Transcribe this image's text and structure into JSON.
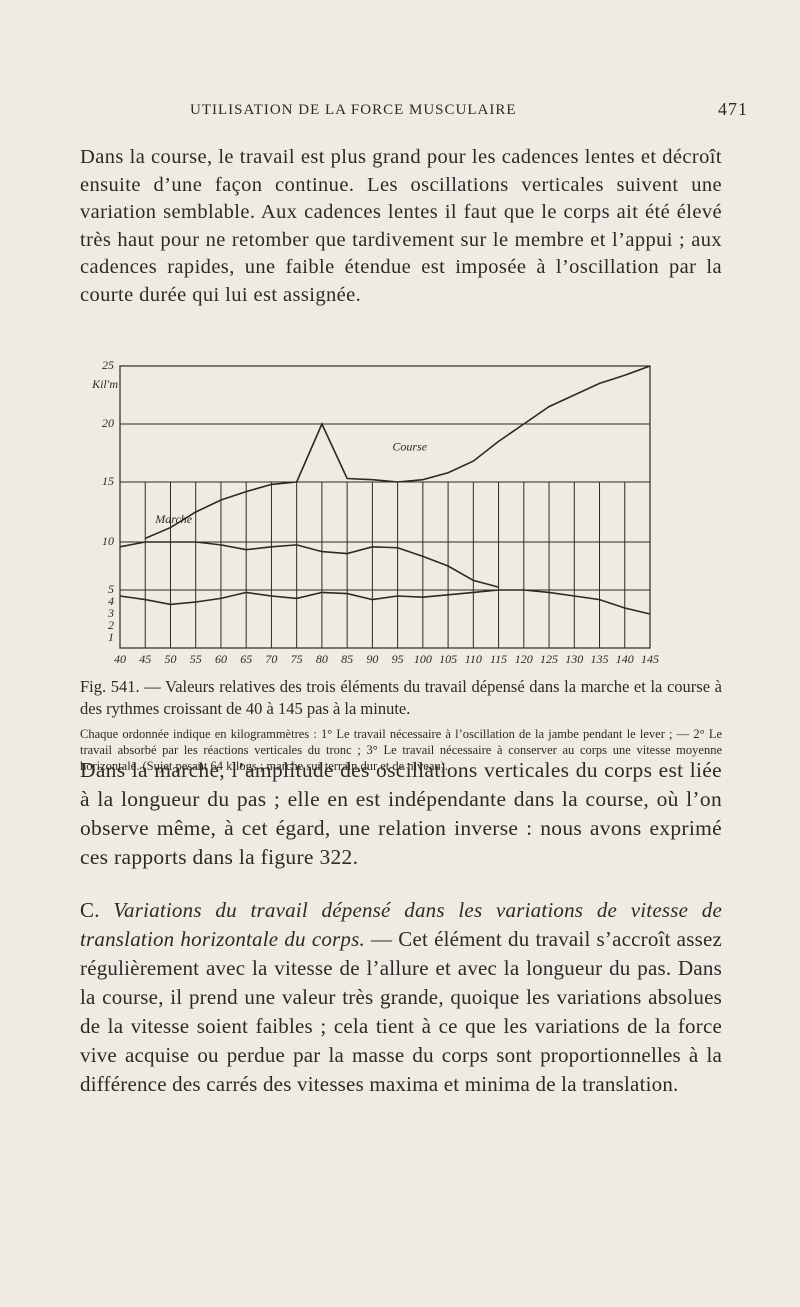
{
  "header": {
    "title": "UTILISATION DE LA FORCE MUSCULAIRE",
    "page": "471"
  },
  "paragraphs": [
    "Dans la course, le travail est plus grand pour les cadences lentes et décroît ensuite d’une façon continue. Les oscillations verticales suivent une variation semblable. Aux cadences lentes il faut que le corps ait été élevé très haut pour ne retomber que tardivement sur le membre et l’appui ; aux cadences rapides, une faible étendue est imposée à l’oscillation par la courte durée qui lui est assignée."
  ],
  "figure": {
    "chart_data": {
      "type": "line",
      "y_label": "Kil'm",
      "x": [
        40,
        45,
        50,
        55,
        60,
        65,
        70,
        75,
        80,
        85,
        90,
        95,
        100,
        105,
        110,
        115,
        120,
        125,
        130,
        135,
        140,
        145
      ],
      "xticks": [
        40,
        45,
        50,
        55,
        60,
        65,
        70,
        75,
        80,
        85,
        90,
        95,
        100,
        105,
        110,
        115,
        120,
        125,
        130,
        135,
        140,
        145
      ],
      "xlim": [
        40,
        145
      ],
      "ylim": [
        0,
        25
      ],
      "yticks": [
        1,
        2,
        3,
        4,
        5,
        10,
        15,
        20,
        25
      ],
      "color": "#2a2a2a",
      "series": [
        {
          "name": "Marche",
          "values": [
            null,
            10.3,
            11.2,
            12.5,
            13.5,
            14.2,
            14.8,
            15,
            null,
            null,
            null,
            null,
            null,
            null,
            null,
            null,
            null,
            null,
            null,
            null,
            null,
            null
          ]
        },
        {
          "name": "Course",
          "values": [
            null,
            null,
            null,
            null,
            null,
            null,
            null,
            15,
            20,
            15.3,
            15.2,
            15,
            15.2,
            15.8,
            16.8,
            18.5,
            20,
            21.5,
            22.5,
            23.5,
            24.2,
            25
          ]
        },
        {
          "values": [
            9.5,
            10,
            10,
            10,
            9.7,
            9.2,
            9.5,
            9.7,
            9,
            8.8,
            9.5,
            9.4,
            8.5,
            7.5,
            6,
            5.3,
            null,
            null,
            null,
            null,
            null,
            null
          ]
        },
        {
          "values": [
            4.5,
            4.2,
            3.8,
            4,
            4.3,
            4.8,
            4.5,
            4.3,
            4.8,
            4.7,
            4.2,
            4.5,
            4.4,
            4.6,
            4.8,
            5,
            5,
            4.8,
            4.5,
            4.2,
            3.5,
            3
          ]
        }
      ]
    },
    "caption": "Fig. 541. — Valeurs relatives des trois éléments du travail dépensé dans la marche et la course à des rythmes croissant de 40 à 145 pas à la minute.",
    "note": "Chaque ordonnée indique en kilogrammètres : 1° Le travail nécessaire à l’oscillation de la jambe pendant le lever ; — 2° Le travail absorbé par les réactions verticales du tronc ; 3° Le travail nécessaire à conserver au corps une vitesse moyenne horizontale. (Sujet pesant 64 kilogs ; marche sur terrain dur et de niveau)."
  },
  "paragraph2": "Dans la marche, l’amplitude des oscillations verticales du corps est liée à la longueur du pas ; elle en est indépendante dans la course, où l’on observe même, à cet égard, une relation inverse : nous avons exprimé ces rapports dans la figure 322.",
  "section": {
    "label": "C.",
    "heading": "Variations du travail dépensé dans les variations de vitesse de translation horizontale du corps.",
    "text": "— Cet élément du travail s’accroît assez régulièrement avec la vitesse de l’allure et avec la longueur du pas. Dans la course, il prend une valeur très grande, quoique les variations absolues de la vitesse soient faibles ; cela tient à ce que les variations de la force vive acquise ou perdue par la masse du corps sont proportionnelles à la différence des carrés des vitesses maxima et minima de la translation."
  }
}
